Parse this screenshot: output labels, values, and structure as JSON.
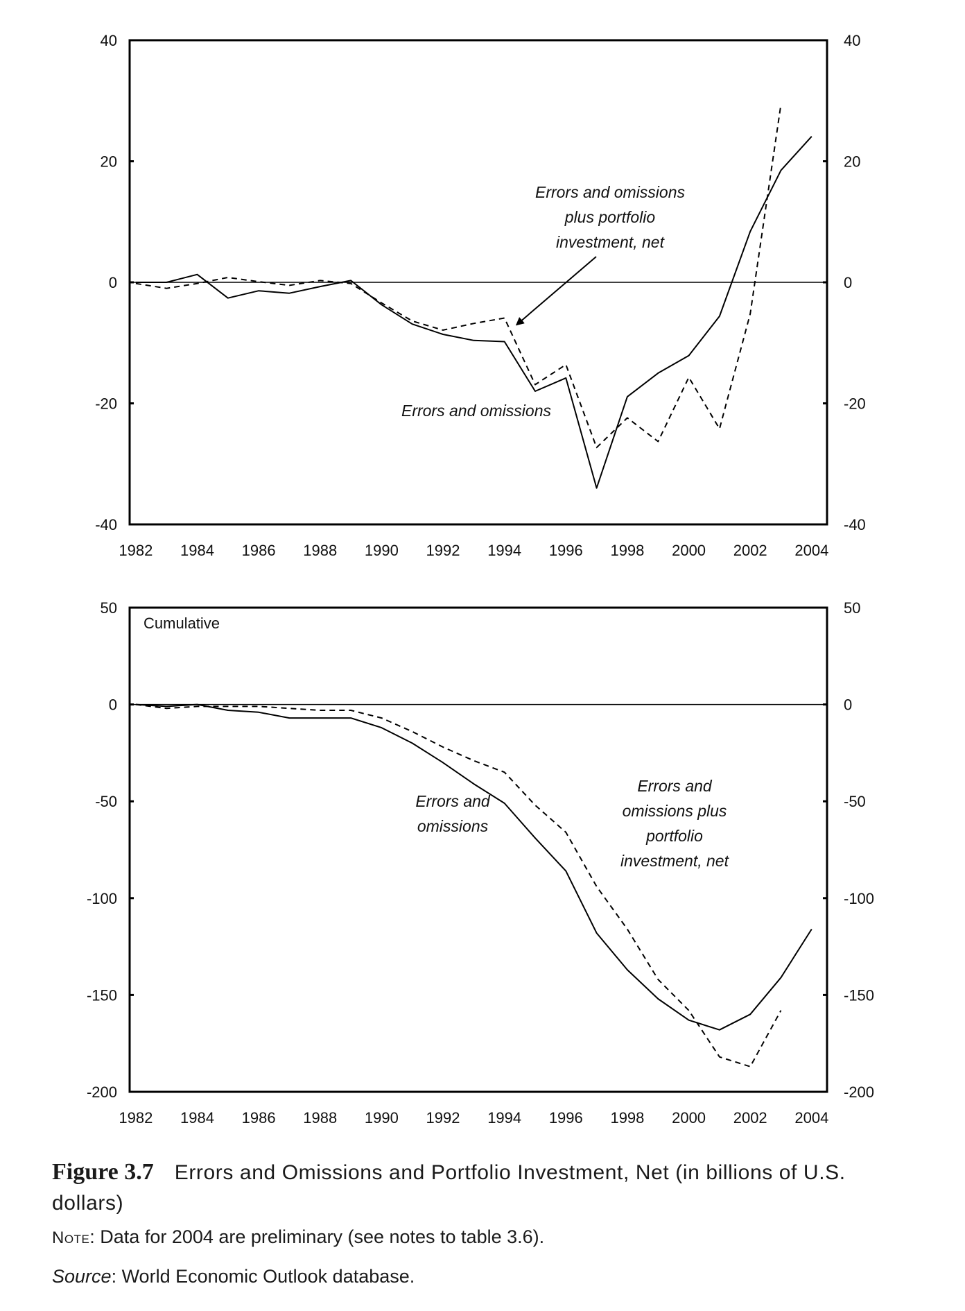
{
  "chart_data": [
    {
      "type": "line",
      "title": "",
      "panel_label": "",
      "xlabel": "",
      "ylabel": "",
      "ylim": [
        -40,
        40
      ],
      "yticks": [
        -40,
        -20,
        0,
        20,
        40
      ],
      "xlim": [
        1981.8,
        2004.5
      ],
      "xticks": [
        1982,
        1984,
        1986,
        1988,
        1990,
        1992,
        1994,
        1996,
        1998,
        2000,
        2002,
        2004
      ],
      "grid": false,
      "zero_line": true,
      "series": [
        {
          "label": "Errors and omissions",
          "style": "solid",
          "x": [
            1982,
            1983,
            1984,
            1985,
            1986,
            1987,
            1988,
            1989,
            1990,
            1991,
            1992,
            1993,
            1994,
            1995,
            1996,
            1997,
            1998,
            1999,
            2000,
            2001,
            2002,
            2003,
            2004
          ],
          "y": [
            0,
            0,
            1.3,
            -2.6,
            -1.4,
            -1.8,
            -0.7,
            0.3,
            -3.7,
            -6.9,
            -8.6,
            -9.6,
            -9.8,
            -18,
            -15.8,
            -34,
            -18.9,
            -15,
            -12.1,
            -5.6,
            8.4,
            18.5,
            24.1
          ]
        },
        {
          "label": "Errors and omissions plus portfolio investment, net",
          "style": "dashed",
          "x": [
            1982,
            1983,
            1984,
            1985,
            1986,
            1987,
            1988,
            1989,
            1990,
            1991,
            1992,
            1993,
            1994,
            1995,
            1996,
            1997,
            1998,
            1999,
            2000,
            2001,
            2002,
            2003
          ],
          "y": [
            -0.2,
            -1,
            -0.2,
            0.8,
            0.1,
            -0.5,
            0.3,
            -0.2,
            -3.4,
            -6.4,
            -7.9,
            -6.8,
            -5.9,
            -16.9,
            -13.6,
            -27.3,
            -22.4,
            -26.3,
            -15.7,
            -24.2,
            -5.2,
            29.4
          ]
        }
      ],
      "annotations": [
        {
          "text": [
            "Errors and omissions",
            "plus portfolio",
            "investment, net"
          ],
          "series": 1,
          "arrow_to": [
            1994.4,
            -7
          ]
        },
        {
          "text": [
            "Errors and omissions"
          ],
          "series": 0
        }
      ]
    },
    {
      "type": "line",
      "title": "",
      "panel_label": "Cumulative",
      "xlabel": "",
      "ylabel": "",
      "ylim": [
        -200,
        50
      ],
      "yticks": [
        -200,
        -150,
        -100,
        -50,
        0,
        50
      ],
      "xlim": [
        1981.8,
        2004.5
      ],
      "xticks": [
        1982,
        1984,
        1986,
        1988,
        1990,
        1992,
        1994,
        1996,
        1998,
        2000,
        2002,
        2004
      ],
      "grid": false,
      "zero_line": true,
      "series": [
        {
          "label": "Errors and omissions",
          "style": "solid",
          "x": [
            1982,
            1983,
            1984,
            1985,
            1986,
            1987,
            1988,
            1989,
            1990,
            1991,
            1992,
            1993,
            1994,
            1995,
            1996,
            1997,
            1998,
            1999,
            2000,
            2001,
            2002,
            2003,
            2004
          ],
          "y": [
            0,
            -1,
            0,
            -3,
            -4,
            -7,
            -7,
            -7,
            -12,
            -20,
            -30,
            -41,
            -51,
            -69,
            -86,
            -118,
            -137,
            -152,
            -163,
            -168,
            -160,
            -141,
            -116
          ]
        },
        {
          "label": "Errors and omissions plus portfolio investment, net",
          "style": "dashed",
          "x": [
            1982,
            1983,
            1984,
            1985,
            1986,
            1987,
            1988,
            1989,
            1990,
            1991,
            1992,
            1993,
            1994,
            1995,
            1996,
            1997,
            1998,
            1999,
            2000,
            2001,
            2002,
            2003
          ],
          "y": [
            0,
            -2,
            -1,
            -1,
            -1,
            -2,
            -3,
            -3,
            -7,
            -14,
            -22,
            -29,
            -35,
            -52,
            -66,
            -94,
            -116,
            -142,
            -158,
            -182,
            -187,
            -158
          ]
        }
      ],
      "annotations": [
        {
          "text": [
            "Errors and",
            "omissions"
          ],
          "series": 0
        },
        {
          "text": [
            "Errors and",
            "omissions plus",
            "portfolio",
            "investment, net"
          ],
          "series": 1
        }
      ]
    }
  ],
  "caption": {
    "figure_label": "Figure 3.7",
    "title": "Errors and Omissions and Portfolio Investment, Net (in billions of U.S. dollars)",
    "note_label": "Note",
    "note_text": ": Data for 2004 are preliminary (see notes to table 3.6).",
    "source_label": "Source",
    "source_text": ": World Economic Outlook database."
  }
}
